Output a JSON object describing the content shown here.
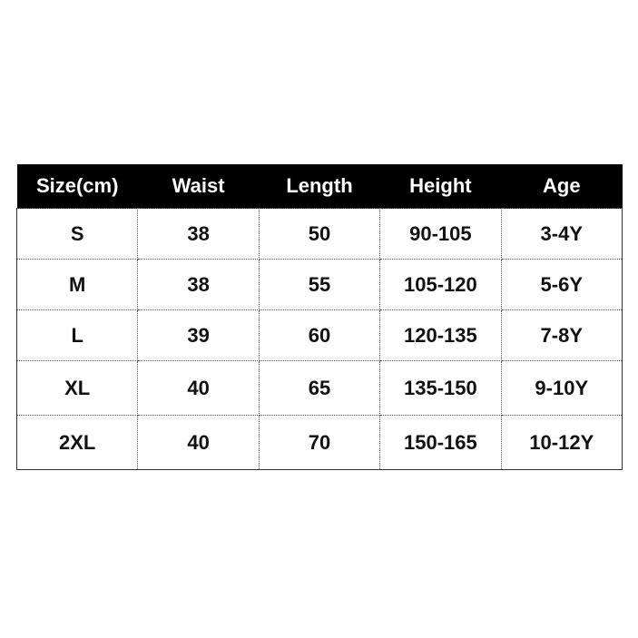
{
  "table": {
    "header": [
      "Size(cm)",
      "Waist",
      "Length",
      "Height",
      "Age"
    ],
    "rows": [
      [
        "S",
        "38",
        "50",
        "90-105",
        "3-4Y"
      ],
      [
        "M",
        "38",
        "55",
        "105-120",
        "5-6Y"
      ],
      [
        "L",
        "39",
        "60",
        "120-135",
        "7-8Y"
      ],
      [
        "XL",
        "40",
        "65",
        "135-150",
        "9-10Y"
      ],
      [
        "2XL",
        "40",
        "70",
        "150-165",
        "10-12Y"
      ]
    ]
  }
}
